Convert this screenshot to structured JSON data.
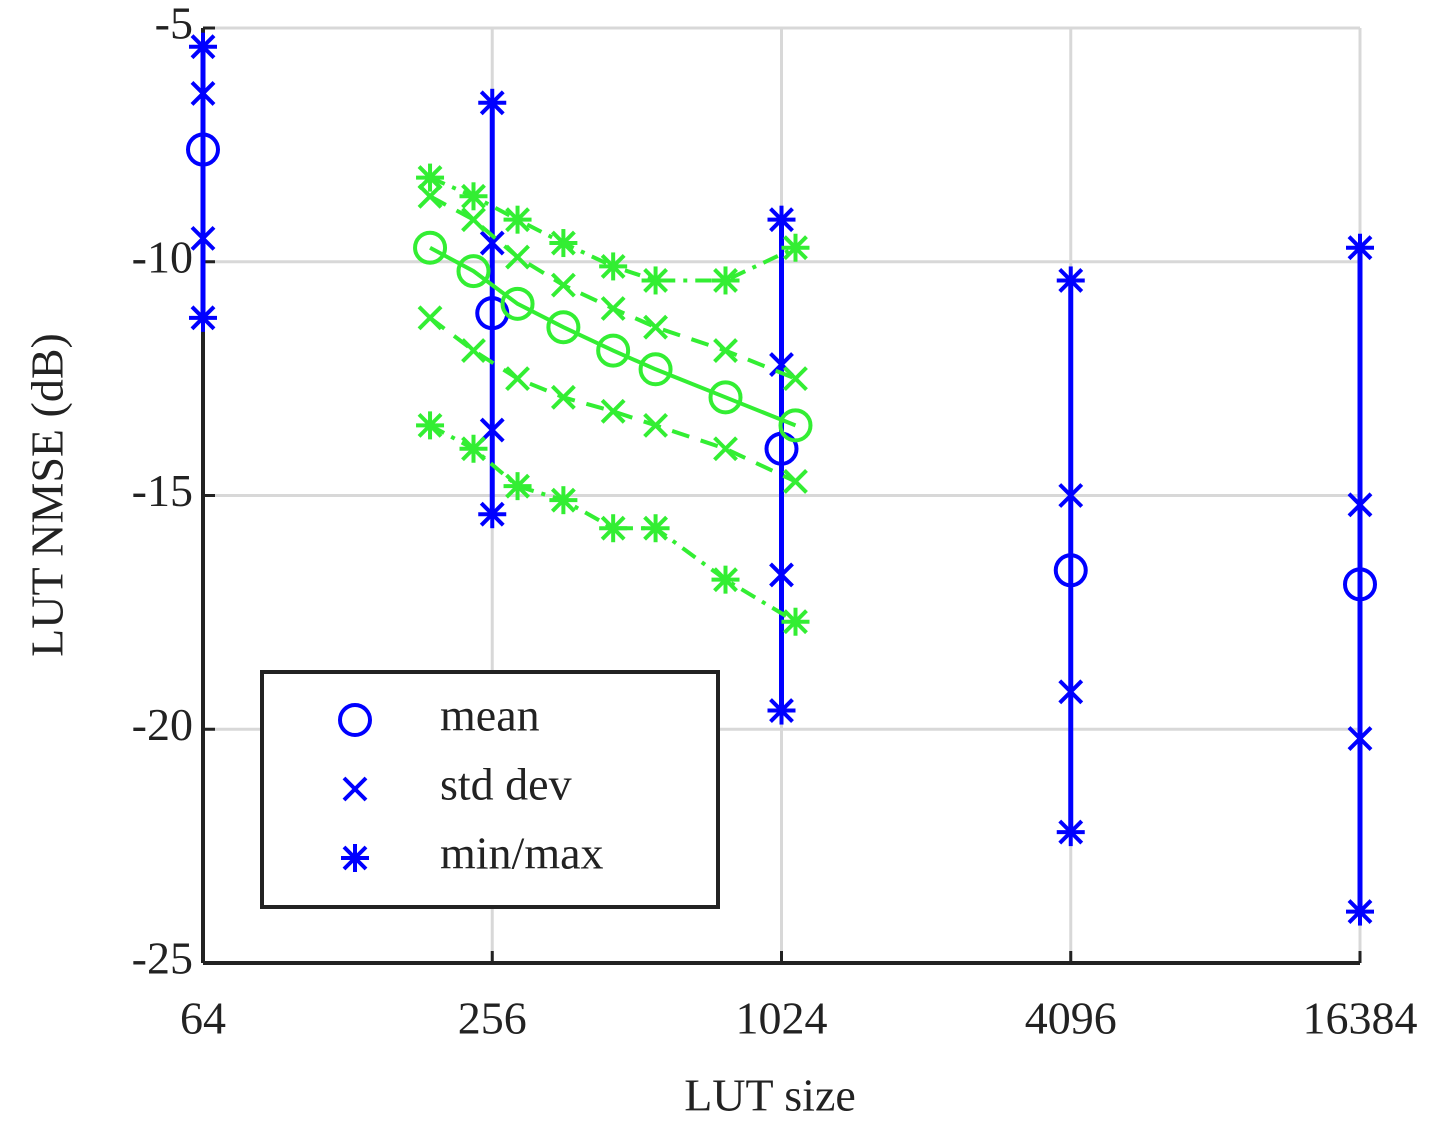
{
  "chart_data": {
    "type": "errorbar",
    "xlabel": "LUT size",
    "ylabel": "LUT NMSE (dB)",
    "xscale": "log",
    "xlim": [
      64,
      16384
    ],
    "xticks": [
      64,
      256,
      1024,
      4096,
      16384
    ],
    "ylim": [
      -25,
      -5
    ],
    "yticks": [
      -25,
      -20,
      -15,
      -10,
      -5
    ],
    "grid": true,
    "legend_position": "lower left",
    "legend": [
      {
        "label": "mean",
        "marker": "circle"
      },
      {
        "label": "std dev",
        "marker": "x"
      },
      {
        "label": "min/max",
        "marker": "star"
      }
    ],
    "groups": [
      {
        "color": "#0000ff",
        "style": "stem",
        "x": [
          64,
          256,
          1024,
          4096,
          16384
        ],
        "mean": [
          -7.6,
          -11.1,
          -14.0,
          -16.6,
          -16.9
        ],
        "std_upper": [
          -6.4,
          -9.6,
          -12.2,
          -15.0,
          -15.2
        ],
        "std_lower": [
          -9.5,
          -13.6,
          -16.7,
          -19.2,
          -20.2
        ],
        "max": [
          -5.4,
          -6.6,
          -9.1,
          -10.4,
          -9.7
        ],
        "min": [
          -11.2,
          -15.4,
          -19.6,
          -22.2,
          -23.9
        ]
      },
      {
        "color": "#33ee33",
        "style": "connected",
        "x": [
          190,
          234,
          289,
          360,
          457,
          560,
          783,
          1095
        ],
        "mean": [
          -9.7,
          -10.2,
          -10.9,
          -11.4,
          -11.9,
          -12.3,
          -12.9,
          -13.5
        ],
        "std_upper": [
          -8.6,
          -9.1,
          -9.9,
          -10.5,
          -11.0,
          -11.4,
          -11.9,
          -12.5
        ],
        "std_lower": [
          -11.2,
          -11.9,
          -12.5,
          -12.9,
          -13.2,
          -13.5,
          -14.0,
          -14.7
        ],
        "max": [
          -8.2,
          -8.6,
          -9.1,
          -9.6,
          -10.1,
          -10.4,
          -10.4,
          -9.7
        ],
        "min": [
          -13.5,
          -14.0,
          -14.8,
          -15.1,
          -15.7,
          -15.7,
          -16.8,
          -17.7
        ]
      }
    ]
  }
}
